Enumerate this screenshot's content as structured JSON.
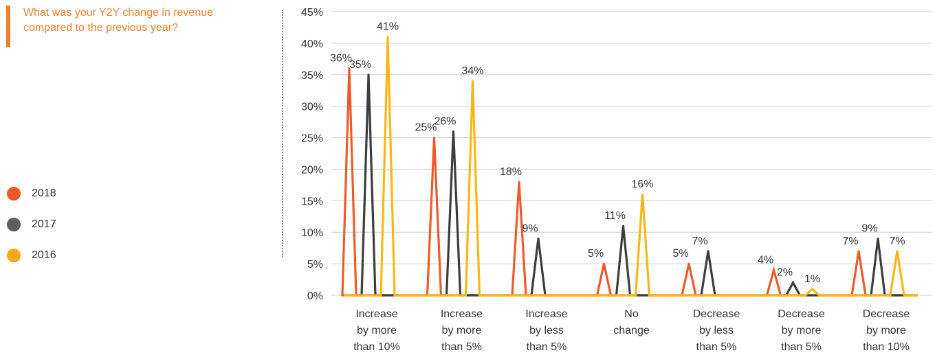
{
  "question": [
    "What was your Y2Y change in revenue",
    "compared to the previous year?"
  ],
  "chart_data": {
    "type": "line",
    "title": "",
    "xlabel": "",
    "ylabel": "",
    "ylim": [
      0,
      45
    ],
    "yticks": [
      "45%",
      "40%",
      "35%",
      "30%",
      "25%",
      "20%",
      "15%",
      "10%",
      "5%",
      "0%"
    ],
    "grid": true,
    "legend_position": "left",
    "categories": [
      [
        "Increase",
        "by more",
        "than 10%"
      ],
      [
        "Increase",
        "by more",
        "than 5%"
      ],
      [
        "Increase",
        "by less",
        "than 5%"
      ],
      [
        "No",
        "change"
      ],
      [
        "Decrease",
        "by less",
        "than 5%"
      ],
      [
        "Decrease",
        "by more",
        "than 5%"
      ],
      [
        "Decrease",
        "by more",
        "than 10%"
      ]
    ],
    "series": [
      {
        "name": "2018",
        "color": "#ed5a2a",
        "values": [
          36,
          25,
          18,
          5,
          5,
          4,
          7
        ],
        "labels": [
          "36%",
          "25%",
          "18%",
          "5%",
          "5%",
          "4%",
          "7%"
        ]
      },
      {
        "name": "2017",
        "color": "#3c3c3c",
        "values": [
          35,
          26,
          9,
          11,
          7,
          2,
          9
        ],
        "labels": [
          "35%",
          "26%",
          "9%",
          "11%",
          "7%",
          "2%",
          "9%"
        ]
      },
      {
        "name": "2016",
        "color": "#fbb615",
        "values": [
          41,
          34,
          0,
          16,
          0,
          1,
          7
        ],
        "labels": [
          "41%",
          "34%",
          "",
          "16%",
          "",
          "1%",
          "7%"
        ]
      }
    ]
  },
  "legend_swatches": [
    {
      "name": "2018",
      "color": "#ed5a2a"
    },
    {
      "name": "2017",
      "color": "#5f5f5f"
    },
    {
      "name": "2016",
      "color": "#fba81e"
    }
  ]
}
